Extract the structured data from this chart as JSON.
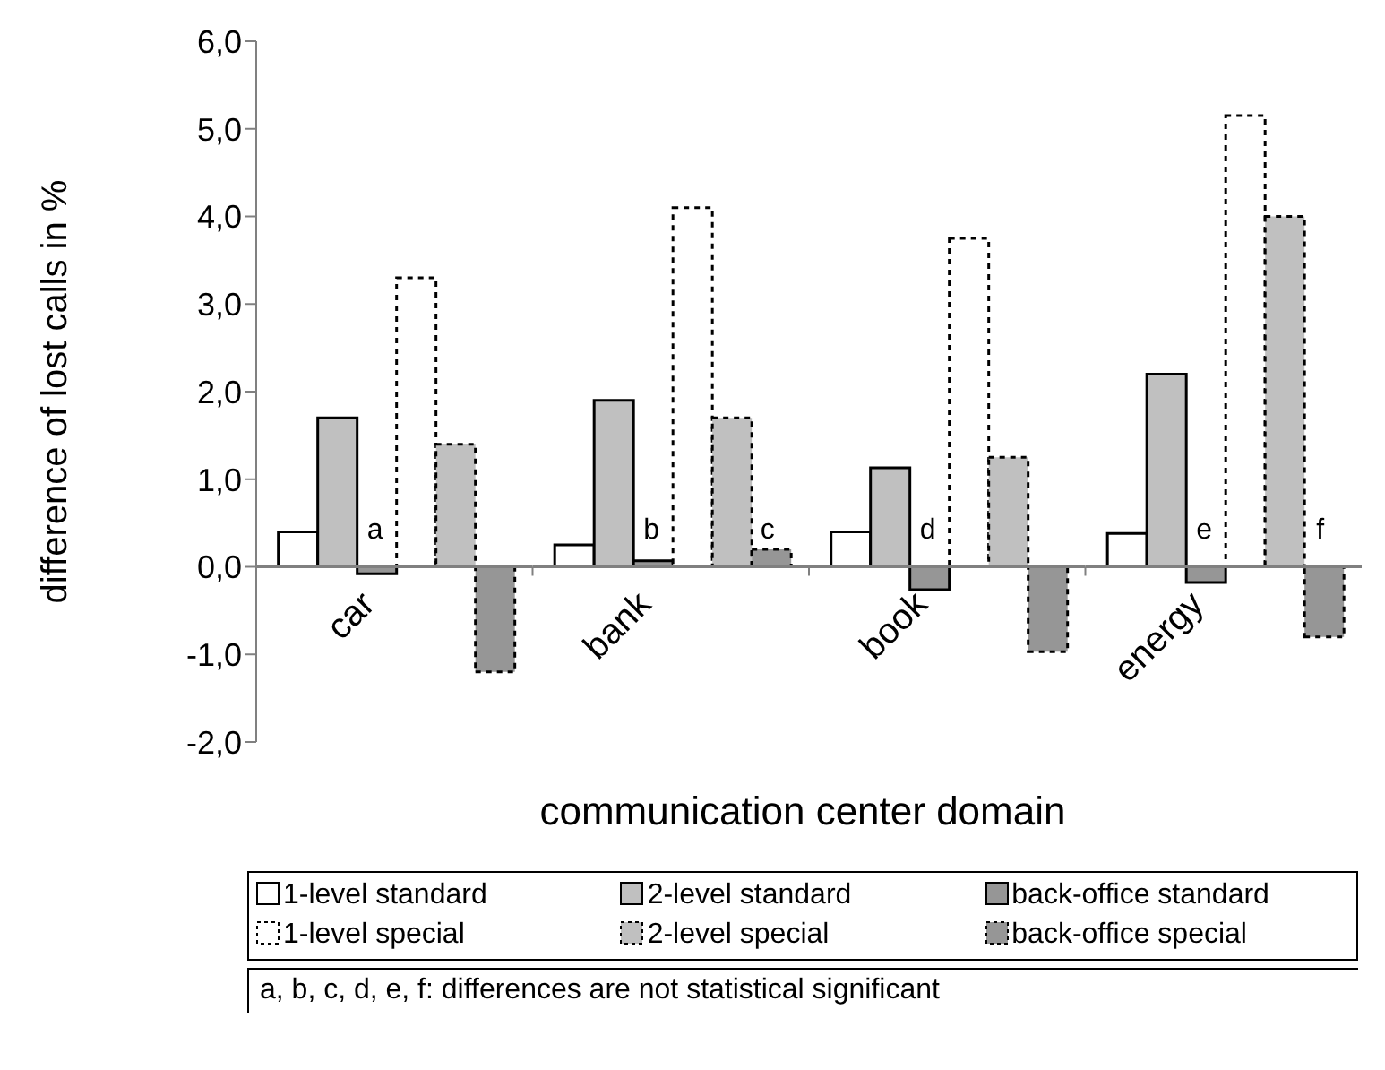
{
  "chart_data": {
    "type": "bar",
    "xlabel": "communication center domain",
    "ylabel": "difference of lost calls in %",
    "categories": [
      "car",
      "bank",
      "book",
      "energy"
    ],
    "series": [
      {
        "name": "1-level standard",
        "color": "#ffffff",
        "line_style": "solid",
        "values": [
          0.4,
          0.25,
          0.4,
          0.38
        ]
      },
      {
        "name": "2-level standard",
        "color": "#c0c0c0",
        "line_style": "solid",
        "values": [
          1.7,
          1.9,
          1.13,
          2.2
        ]
      },
      {
        "name": "back-office standard",
        "color": "#969696",
        "line_style": "solid",
        "values": [
          -0.08,
          0.07,
          -0.26,
          -0.18
        ]
      },
      {
        "name": "1-level special",
        "color": "#ffffff",
        "line_style": "dashed",
        "values": [
          3.3,
          4.1,
          3.75,
          5.15
        ]
      },
      {
        "name": "2-level special",
        "color": "#c0c0c0",
        "line_style": "dashed",
        "values": [
          1.4,
          1.7,
          1.25,
          4.0
        ]
      },
      {
        "name": "back-office special",
        "color": "#969696",
        "line_style": "dashed",
        "values": [
          -1.2,
          0.2,
          -0.97,
          -0.8
        ]
      }
    ],
    "ylim": [
      -2,
      6
    ],
    "yticks": [
      {
        "value": -2,
        "label": "-2,0"
      },
      {
        "value": -1,
        "label": "-1,0"
      },
      {
        "value": 0,
        "label": "0,0"
      },
      {
        "value": 1,
        "label": "1,0"
      },
      {
        "value": 2,
        "label": "2,0"
      },
      {
        "value": 3,
        "label": "3,0"
      },
      {
        "value": 4,
        "label": "4,0"
      },
      {
        "value": 5,
        "label": "5,0"
      },
      {
        "value": 6,
        "label": "6,0"
      }
    ],
    "grid": false,
    "legend": "bottom",
    "annotations": [
      "a",
      "b",
      "c",
      "d",
      "e",
      "f",
      "a, b, c, d, e, f: differences are not statistical significant"
    ]
  }
}
